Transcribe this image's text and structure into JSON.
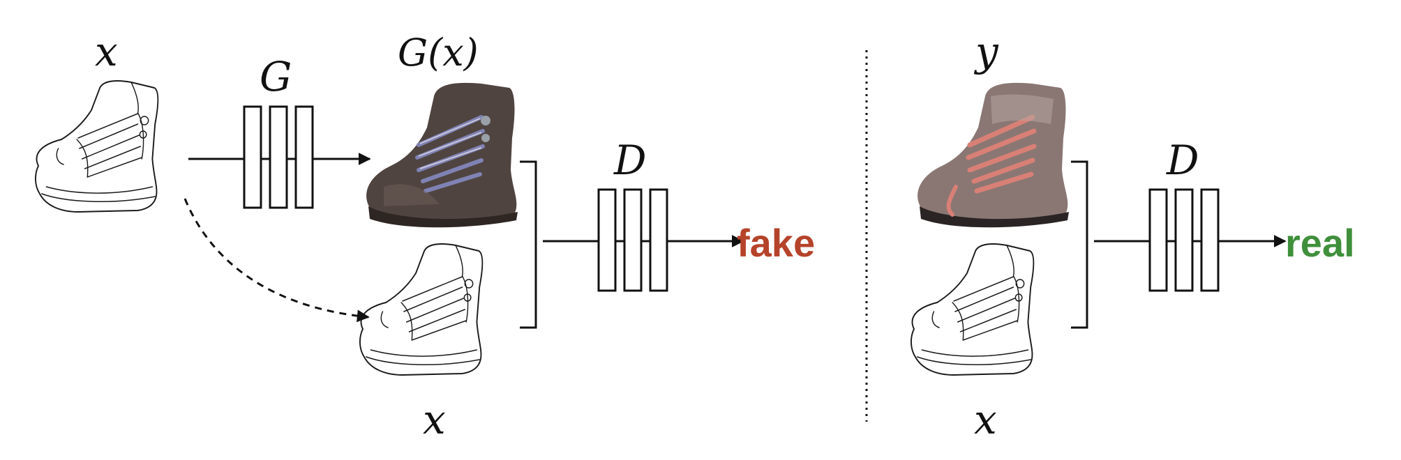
{
  "labels": {
    "x_top_left": "x",
    "generator": "G",
    "gx": "G(x)",
    "discriminator_left": "D",
    "x_bottom_left": "x",
    "fake": "fake",
    "y_top_right": "y",
    "discriminator_right": "D",
    "x_bottom_right": "x",
    "real": "real"
  },
  "colors": {
    "fake": "#b5432a",
    "real": "#3f8f3b",
    "generated_boot": "#4f4440",
    "real_boot": "#8a7773",
    "generated_laces": "#7f82b3",
    "real_laces": "#d98076"
  }
}
